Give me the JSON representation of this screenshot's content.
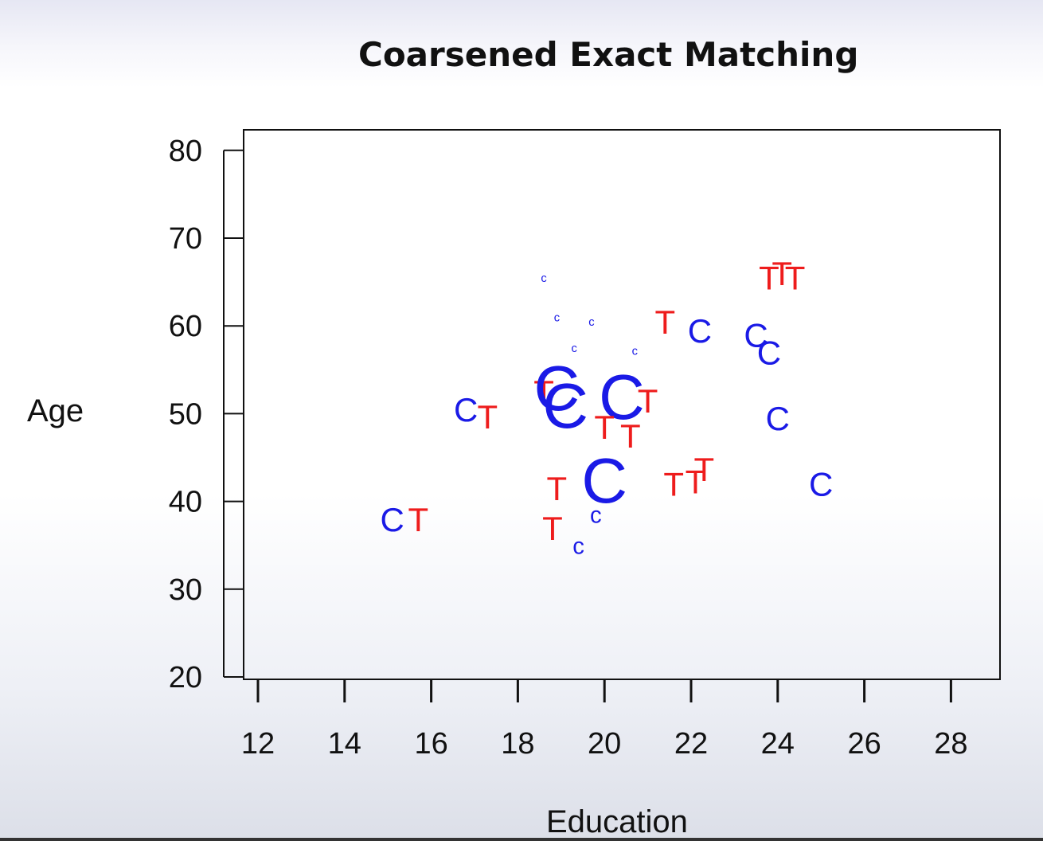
{
  "chart_data": {
    "type": "scatter",
    "title": "Coarsened Exact Matching",
    "xlabel": "Education",
    "ylabel": "Age",
    "xlim": [
      12,
      28
    ],
    "ylim": [
      20,
      80
    ],
    "xticks": [
      12,
      14,
      16,
      18,
      20,
      22,
      24,
      26,
      28
    ],
    "yticks": [
      20,
      30,
      40,
      50,
      60,
      70,
      80
    ],
    "grid": false,
    "colors": {
      "C": "#1a1ae6",
      "T": "#ee1c1c"
    },
    "points": [
      {
        "label": "C",
        "x": 15.1,
        "y": 38,
        "size": 1
      },
      {
        "label": "T",
        "x": 15.7,
        "y": 38,
        "size": 1
      },
      {
        "label": "C",
        "x": 16.8,
        "y": 50.5,
        "size": 1
      },
      {
        "label": "T",
        "x": 17.3,
        "y": 49.7,
        "size": 1
      },
      {
        "label": "c",
        "x": 18.6,
        "y": 65.5,
        "size": 0.35
      },
      {
        "label": "c",
        "x": 18.9,
        "y": 61,
        "size": 0.35
      },
      {
        "label": "c",
        "x": 19.7,
        "y": 60.5,
        "size": 0.35
      },
      {
        "label": "c",
        "x": 19.3,
        "y": 57.5,
        "size": 0.35
      },
      {
        "label": "c",
        "x": 20.7,
        "y": 57.2,
        "size": 0.35
      },
      {
        "label": "T",
        "x": 18.6,
        "y": 52.5,
        "size": 1
      },
      {
        "label": "C",
        "x": 18.9,
        "y": 53,
        "size": 1.9
      },
      {
        "label": "C",
        "x": 19.1,
        "y": 51,
        "size": 1.9
      },
      {
        "label": "C",
        "x": 20.4,
        "y": 52,
        "size": 1.9
      },
      {
        "label": "T",
        "x": 21.0,
        "y": 51.5,
        "size": 1
      },
      {
        "label": "T",
        "x": 20.0,
        "y": 48.5,
        "size": 1
      },
      {
        "label": "T",
        "x": 20.6,
        "y": 47.5,
        "size": 1
      },
      {
        "label": "C",
        "x": 20.0,
        "y": 42.5,
        "size": 1.9
      },
      {
        "label": "T",
        "x": 18.9,
        "y": 41.5,
        "size": 1
      },
      {
        "label": "c",
        "x": 19.8,
        "y": 38.5,
        "size": 0.7
      },
      {
        "label": "T",
        "x": 18.8,
        "y": 37,
        "size": 1
      },
      {
        "label": "c",
        "x": 19.4,
        "y": 35,
        "size": 0.7
      },
      {
        "label": "T",
        "x": 21.4,
        "y": 60.5,
        "size": 1
      },
      {
        "label": "C",
        "x": 22.2,
        "y": 59.5,
        "size": 1
      },
      {
        "label": "C",
        "x": 23.5,
        "y": 59,
        "size": 1
      },
      {
        "label": "C",
        "x": 23.8,
        "y": 57,
        "size": 1
      },
      {
        "label": "T",
        "x": 23.8,
        "y": 65.5,
        "size": 1
      },
      {
        "label": "T",
        "x": 24.1,
        "y": 66,
        "size": 1
      },
      {
        "label": "T",
        "x": 24.4,
        "y": 65.5,
        "size": 1
      },
      {
        "label": "C",
        "x": 24.0,
        "y": 49.5,
        "size": 1
      },
      {
        "label": "T",
        "x": 21.6,
        "y": 42,
        "size": 1
      },
      {
        "label": "T",
        "x": 22.1,
        "y": 42.3,
        "size": 1
      },
      {
        "label": "T",
        "x": 22.3,
        "y": 43.7,
        "size": 1
      },
      {
        "label": "C",
        "x": 25.0,
        "y": 42,
        "size": 1
      }
    ]
  }
}
